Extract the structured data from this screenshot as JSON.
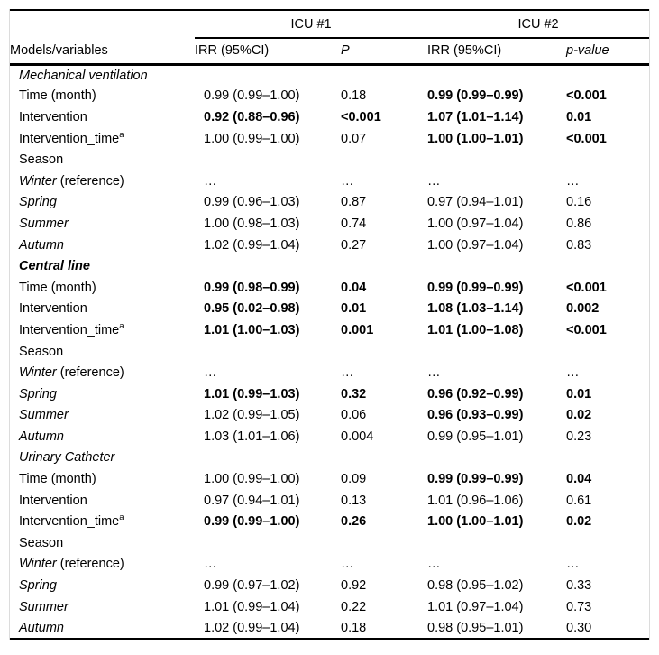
{
  "colors": {
    "rule": "#000000",
    "frame": "#dcdcdc",
    "text": "#000000",
    "background": "#ffffff"
  },
  "table": {
    "spanners": [
      {
        "label": "ICU #1"
      },
      {
        "label": "ICU #2"
      }
    ],
    "column_headers": {
      "models": "Models/variables",
      "icu1_irr": "IRR (95%CI)",
      "icu1_p": "P",
      "icu2_irr": "IRR (95%CI)",
      "icu2_p": "p-value"
    },
    "rows": [
      {
        "label": "Mechanical ventilation",
        "label_style": "italic",
        "cells": null
      },
      {
        "label": "Time (month)",
        "cells": [
          {
            "t": "0.99 (0.99–1.00)"
          },
          {
            "t": "0.18"
          },
          {
            "t": "0.99 (0.99–0.99)",
            "b": true
          },
          {
            "t": "<0.001",
            "b": true
          }
        ]
      },
      {
        "label": "Intervention",
        "cells": [
          {
            "t": "0.92 (0.88–0.96)",
            "b": true
          },
          {
            "t": "<0.001",
            "b": true
          },
          {
            "t": "1.07 (1.01–1.14)",
            "b": true
          },
          {
            "t": "0.01",
            "b": true
          }
        ]
      },
      {
        "label": "Intervention_time",
        "sup": "a",
        "cells": [
          {
            "t": "1.00 (0.99–1.00)"
          },
          {
            "t": "0.07"
          },
          {
            "t": "1.00 (1.00–1.01)",
            "b": true
          },
          {
            "t": "<0.001",
            "b": true
          }
        ]
      },
      {
        "label": "Season",
        "cells": null
      },
      {
        "label": "Winter",
        "label_style": "italic",
        "suffix": " (reference)",
        "cells": [
          {
            "t": "…"
          },
          {
            "t": "…"
          },
          {
            "t": "…"
          },
          {
            "t": "…"
          }
        ]
      },
      {
        "label": "Spring",
        "label_style": "italic",
        "cells": [
          {
            "t": "0.99 (0.96–1.03)"
          },
          {
            "t": "0.87"
          },
          {
            "t": "0.97 (0.94–1.01)"
          },
          {
            "t": "0.16"
          }
        ]
      },
      {
        "label": "Summer",
        "label_style": "italic",
        "cells": [
          {
            "t": "1.00 (0.98–1.03)"
          },
          {
            "t": "0.74"
          },
          {
            "t": "1.00 (0.97–1.04)"
          },
          {
            "t": "0.86"
          }
        ]
      },
      {
        "label": "Autumn",
        "label_style": "italic",
        "cells": [
          {
            "t": "1.02 (0.99–1.04)"
          },
          {
            "t": "0.27"
          },
          {
            "t": "1.00 (0.97–1.04)"
          },
          {
            "t": "0.83"
          }
        ]
      },
      {
        "label": "Central line",
        "label_style": "bold-italic",
        "cells": null
      },
      {
        "label": "Time (month)",
        "cells": [
          {
            "t": "0.99 (0.98–0.99)",
            "b": true
          },
          {
            "t": "0.04",
            "b": true
          },
          {
            "t": "0.99 (0.99–0.99)",
            "b": true
          },
          {
            "t": "<0.001",
            "b": true
          }
        ]
      },
      {
        "label": "Intervention",
        "cells": [
          {
            "t": "0.95 (0.02–0.98)",
            "b": true
          },
          {
            "t": "0.01",
            "b": true
          },
          {
            "t": "1.08 (1.03–1.14)",
            "b": true
          },
          {
            "t": "0.002",
            "b": true
          }
        ]
      },
      {
        "label": "Intervention_time",
        "sup": "a",
        "cells": [
          {
            "t": "1.01 (1.00–1.03)",
            "b": true
          },
          {
            "t": "0.001",
            "b": true
          },
          {
            "t": "1.01 (1.00–1.08)",
            "b": true
          },
          {
            "t": "<0.001",
            "b": true
          }
        ]
      },
      {
        "label": "Season",
        "cells": null
      },
      {
        "label": "Winter",
        "label_style": "italic",
        "suffix": " (reference)",
        "cells": [
          {
            "t": "…"
          },
          {
            "t": "…"
          },
          {
            "t": "…"
          },
          {
            "t": "…"
          }
        ]
      },
      {
        "label": "Spring",
        "label_style": "italic",
        "cells": [
          {
            "t": "1.01 (0.99–1.03)",
            "b": true
          },
          {
            "t": "0.32",
            "b": true
          },
          {
            "t": "0.96 (0.92–0.99)",
            "b": true
          },
          {
            "t": "0.01",
            "b": true
          }
        ]
      },
      {
        "label": "Summer",
        "label_style": "italic",
        "cells": [
          {
            "t": "1.02 (0.99–1.05)"
          },
          {
            "t": "0.06"
          },
          {
            "t": "0.96 (0.93–0.99)",
            "b": true
          },
          {
            "t": "0.02",
            "b": true
          }
        ]
      },
      {
        "label": "Autumn",
        "label_style": "italic",
        "cells": [
          {
            "t": "1.03 (1.01–1.06)"
          },
          {
            "t": "0.004"
          },
          {
            "t": "0.99 (0.95–1.01)"
          },
          {
            "t": "0.23"
          }
        ]
      },
      {
        "label": "Urinary Catheter",
        "label_style": "italic",
        "cells": null
      },
      {
        "label": "Time (month)",
        "cells": [
          {
            "t": "1.00 (0.99–1.00)"
          },
          {
            "t": "0.09"
          },
          {
            "t": "0.99 (0.99–0.99)",
            "b": true
          },
          {
            "t": "0.04",
            "b": true
          }
        ]
      },
      {
        "label": "Intervention",
        "cells": [
          {
            "t": "0.97 (0.94–1.01)"
          },
          {
            "t": "0.13"
          },
          {
            "t": "1.01 (0.96–1.06)"
          },
          {
            "t": "0.61"
          }
        ]
      },
      {
        "label": "Intervention_time",
        "sup": "a",
        "cells": [
          {
            "t": "0.99 (0.99–1.00)",
            "b": true
          },
          {
            "t": "0.26",
            "b": true
          },
          {
            "t": "1.00 (1.00–1.01)",
            "b": true
          },
          {
            "t": "0.02",
            "b": true
          }
        ]
      },
      {
        "label": "Season",
        "cells": null
      },
      {
        "label": "Winter",
        "label_style": "italic",
        "suffix": " (reference)",
        "cells": [
          {
            "t": "…"
          },
          {
            "t": "…"
          },
          {
            "t": "…"
          },
          {
            "t": "…"
          }
        ]
      },
      {
        "label": "Spring",
        "label_style": "italic",
        "cells": [
          {
            "t": "0.99 (0.97–1.02)"
          },
          {
            "t": "0.92"
          },
          {
            "t": "0.98 (0.95–1.02)"
          },
          {
            "t": "0.33"
          }
        ]
      },
      {
        "label": "Summer",
        "label_style": "italic",
        "cells": [
          {
            "t": "1.01 (0.99–1.04)"
          },
          {
            "t": "0.22"
          },
          {
            "t": "1.01 (0.97–1.04)"
          },
          {
            "t": "0.73"
          }
        ]
      },
      {
        "label": "Autumn",
        "label_style": "italic",
        "cells": [
          {
            "t": "1.02 (0.99–1.04)"
          },
          {
            "t": "0.18"
          },
          {
            "t": "0.98 (0.95–1.01)"
          },
          {
            "t": "0.30"
          }
        ]
      }
    ]
  }
}
